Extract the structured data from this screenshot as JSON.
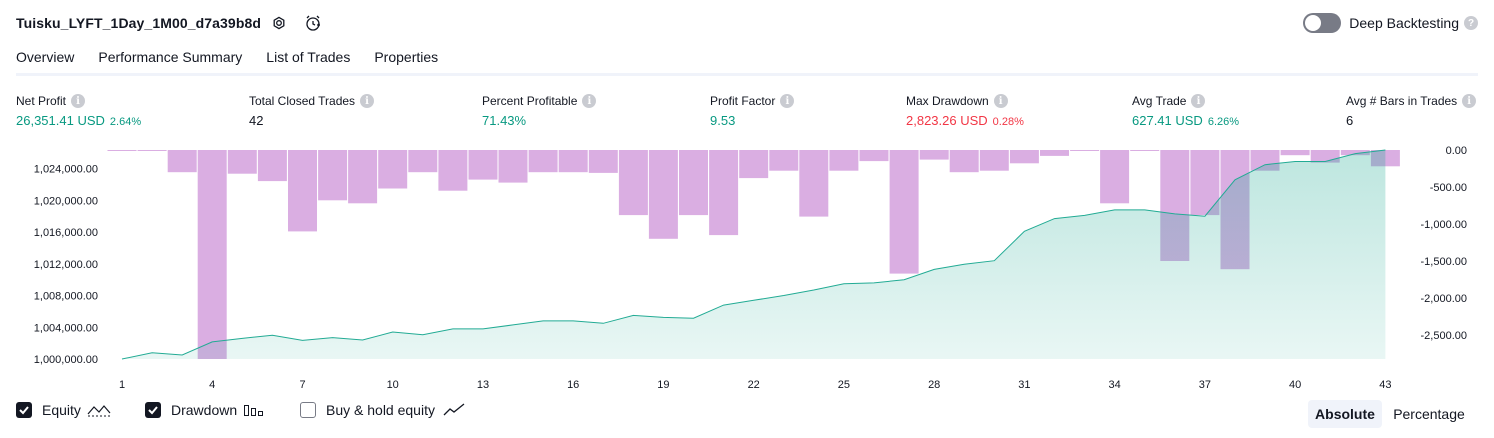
{
  "header": {
    "title": "Tuisku_LYFT_1Day_1M00_d7a39b8d",
    "settings_icon": "gear-icon",
    "alert_icon": "alarm-clock-icon",
    "deep_backtesting_label": "Deep Backtesting",
    "deep_backtesting_on": false,
    "help_glyph": "?"
  },
  "tabs": [
    {
      "label": "Overview",
      "active": true
    },
    {
      "label": "Performance Summary",
      "active": false
    },
    {
      "label": "List of Trades",
      "active": false
    },
    {
      "label": "Properties",
      "active": false
    }
  ],
  "info_glyph": "i",
  "metrics": [
    {
      "label": "Net Profit",
      "value": "26,351.41 USD",
      "pct": "2.64%",
      "tone": "green"
    },
    {
      "label": "Total Closed Trades",
      "value": "42",
      "pct": "",
      "tone": "neutral"
    },
    {
      "label": "Percent Profitable",
      "value": "71.43%",
      "pct": "",
      "tone": "green"
    },
    {
      "label": "Profit Factor",
      "value": "9.53",
      "pct": "",
      "tone": "green"
    },
    {
      "label": "Max Drawdown",
      "value": "2,823.26 USD",
      "pct": "0.28%",
      "tone": "red"
    },
    {
      "label": "Avg Trade",
      "value": "627.41 USD",
      "pct": "6.26%",
      "tone": "green"
    },
    {
      "label": "Avg # Bars in Trades",
      "value": "6",
      "pct": "",
      "tone": "neutral"
    }
  ],
  "chart_data": {
    "type": "area",
    "x_ticks": [
      "1",
      "4",
      "7",
      "10",
      "13",
      "16",
      "19",
      "22",
      "25",
      "28",
      "31",
      "34",
      "37",
      "40",
      "43"
    ],
    "left_axis": {
      "ticks": [
        "1,024,000.00",
        "1,020,000.00",
        "1,016,000.00",
        "1,012,000.00",
        "1,008,000.00",
        "1,004,000.00",
        "1,000,000.00"
      ],
      "ylim": [
        1000000,
        1026351.41
      ]
    },
    "right_axis": {
      "ticks": [
        "0.00",
        "-500.00",
        "-1,000.00",
        "-1,500.00",
        "-2,000.00",
        "-2,500.00"
      ],
      "ylim": [
        -2823.26,
        0
      ]
    },
    "series": [
      {
        "name": "Equity",
        "type": "area",
        "color": "#22ab94",
        "x": [
          1,
          2,
          3,
          4,
          5,
          6,
          7,
          8,
          9,
          10,
          11,
          12,
          13,
          14,
          15,
          16,
          17,
          18,
          19,
          20,
          21,
          22,
          23,
          24,
          25,
          26,
          27,
          28,
          29,
          30,
          31,
          32,
          33,
          34,
          35,
          36,
          37,
          38,
          39,
          40,
          41,
          42,
          43
        ],
        "values": [
          1000000,
          1000800,
          1000500,
          1002150,
          1002600,
          1003000,
          1002350,
          1002700,
          1002400,
          1003400,
          1003050,
          1003800,
          1003800,
          1004300,
          1004800,
          1004800,
          1004500,
          1005500,
          1005250,
          1005150,
          1006800,
          1007400,
          1008000,
          1008700,
          1009500,
          1009600,
          1010000,
          1011300,
          1011950,
          1012400,
          1016100,
          1017700,
          1018100,
          1018800,
          1018800,
          1018300,
          1018000,
          1022600,
          1024500,
          1024900,
          1024900,
          1025900,
          1026351.41
        ]
      },
      {
        "name": "Drawdown",
        "type": "bar",
        "color": "#ce93d8",
        "x": [
          1,
          2,
          3,
          4,
          5,
          6,
          7,
          8,
          9,
          10,
          11,
          12,
          13,
          14,
          15,
          16,
          17,
          18,
          19,
          20,
          21,
          22,
          23,
          24,
          25,
          26,
          27,
          28,
          29,
          30,
          31,
          32,
          33,
          34,
          35,
          36,
          37,
          38,
          39,
          40,
          41,
          42,
          43
        ],
        "values": [
          -10,
          -10,
          -300,
          -2823.26,
          -320,
          -420,
          -1100,
          -680,
          -720,
          -520,
          -300,
          -550,
          -400,
          -440,
          -300,
          -300,
          -310,
          -880,
          -1200,
          -880,
          -1150,
          -380,
          -280,
          -900,
          -280,
          -150,
          -1670,
          -130,
          -300,
          -280,
          -180,
          -80,
          0,
          -720,
          0,
          -1500,
          -880,
          -1610,
          -280,
          -70,
          -170,
          -70,
          -220
        ]
      }
    ]
  },
  "legend": [
    {
      "label": "Equity",
      "checked": true,
      "icon": "equity-line-icon"
    },
    {
      "label": "Drawdown",
      "checked": true,
      "icon": "drawdown-bars-icon"
    },
    {
      "label": "Buy & hold equity",
      "checked": false,
      "icon": "buy-hold-line-icon"
    }
  ],
  "scale_toggle": {
    "absolute_label": "Absolute",
    "percentage_label": "Percentage",
    "selected": "Absolute"
  },
  "colors": {
    "accent": "#131722",
    "green": "#089981",
    "red": "#f23645",
    "equity_line": "#22ab94",
    "drawdown_bar": "#ce93d8"
  }
}
